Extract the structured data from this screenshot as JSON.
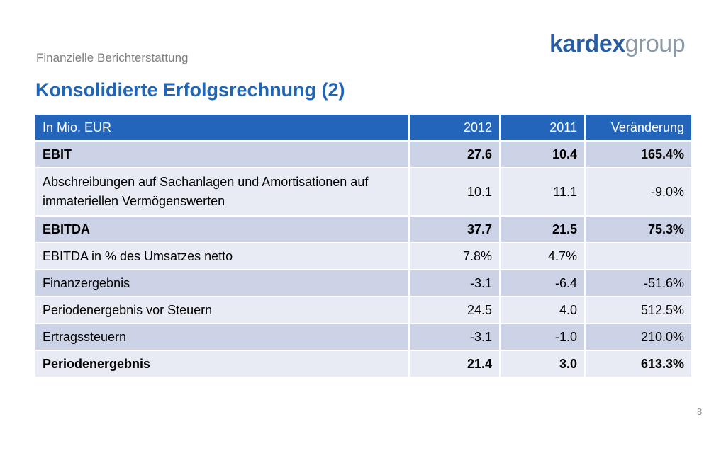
{
  "header": {
    "subtitle": "Finanzielle Berichterstattung",
    "title": "Konsolidierte Erfolgsrechnung (2)",
    "logo_brand": "kardex",
    "logo_suffix": "group"
  },
  "table": {
    "columns": [
      "In Mio. EUR",
      "2012",
      "2011",
      "Veränderung"
    ],
    "rows": [
      {
        "label": "EBIT",
        "v2012": "27.6",
        "v2011": "10.4",
        "change": "165.4%"
      },
      {
        "label": "Abschreibungen auf Sachanlagen und Amortisationen auf immateriellen Vermögenswerten",
        "v2012": "10.1",
        "v2011": "11.1",
        "change": "-9.0%"
      },
      {
        "label": "EBITDA",
        "v2012": "37.7",
        "v2011": "21.5",
        "change": "75.3%"
      },
      {
        "label": "EBITDA in % des Umsatzes netto",
        "v2012": "7.8%",
        "v2011": "4.7%",
        "change": ""
      },
      {
        "label": "Finanzergebnis",
        "v2012": "-3.1",
        "v2011": "-6.4",
        "change": "-51.6%"
      },
      {
        "label": "Periodenergebnis vor Steuern",
        "v2012": "24.5",
        "v2011": "4.0",
        "change": "512.5%"
      },
      {
        "label": "Ertragssteuern",
        "v2012": "-3.1",
        "v2011": "-1.0",
        "change": "210.0%"
      },
      {
        "label": "Periodenergebnis",
        "v2012": "21.4",
        "v2011": "3.0",
        "change": "613.3%"
      }
    ]
  },
  "footer": {
    "page_number": "8"
  },
  "colors": {
    "title": "#2065b6",
    "header_bg": "#2265ba",
    "row_dark": "#cdd3e6",
    "row_light": "#e8ebf4"
  }
}
